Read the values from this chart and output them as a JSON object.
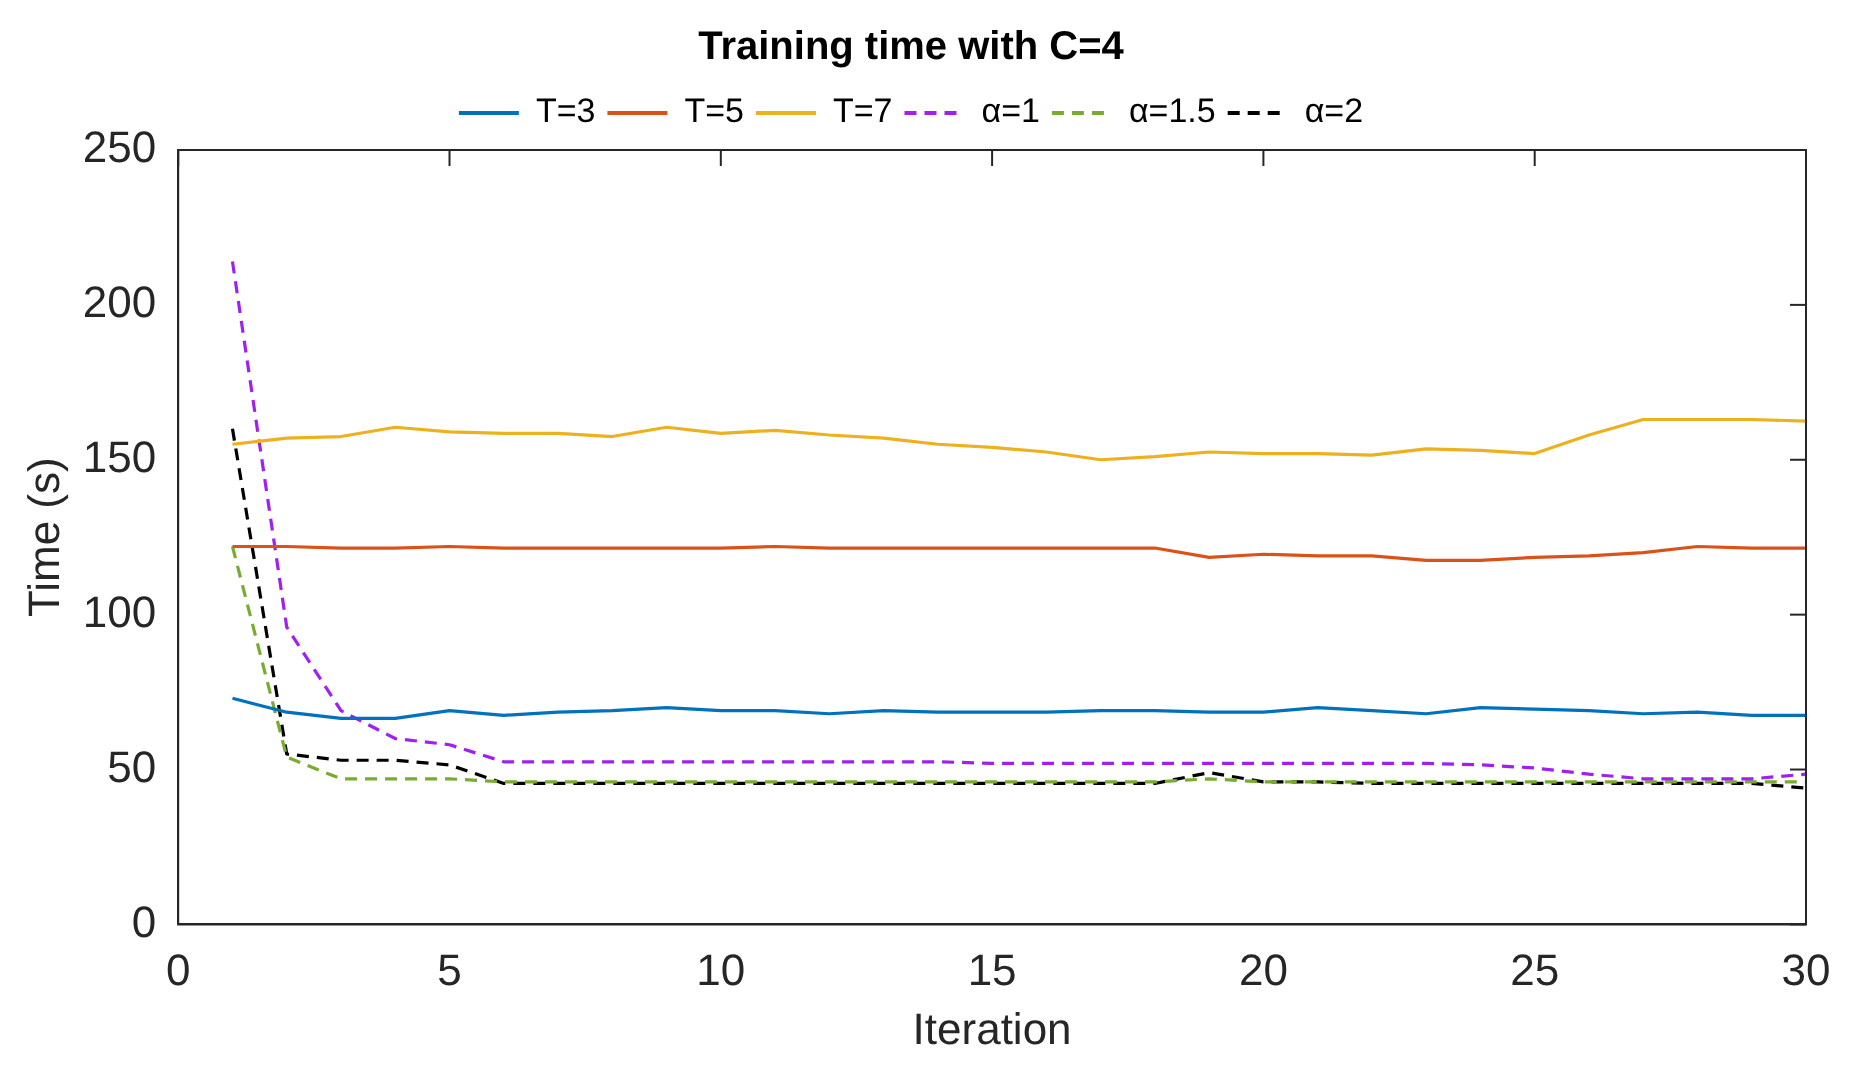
{
  "chart_data": {
    "type": "line",
    "title": "Training time with C=4",
    "xlabel": "Iteration",
    "ylabel": "Time (s)",
    "x": [
      1,
      2,
      3,
      4,
      5,
      6,
      7,
      8,
      9,
      10,
      11,
      12,
      13,
      14,
      15,
      16,
      17,
      18,
      19,
      20,
      21,
      22,
      23,
      24,
      25,
      26,
      27,
      28,
      29,
      30
    ],
    "xlim": [
      0,
      30
    ],
    "xticks": [
      0,
      5,
      10,
      15,
      20,
      25,
      30
    ],
    "ylim": [
      0,
      250
    ],
    "yticks": [
      0,
      50,
      100,
      150,
      200,
      250
    ],
    "grid": false,
    "legend": "top",
    "marker": "none",
    "series": [
      {
        "name": "T=3",
        "color": "#0072bd",
        "line_style": "solid",
        "values": [
          73,
          68.5,
          66.5,
          66.5,
          69,
          67.5,
          68.5,
          69,
          70,
          69,
          69,
          68,
          69,
          68.5,
          68.5,
          68.5,
          69,
          69,
          68.5,
          68.5,
          70,
          69,
          68,
          70,
          69.5,
          69,
          68,
          68.5,
          67.5,
          67.5
        ]
      },
      {
        "name": "T=5",
        "color": "#d95319",
        "line_style": "solid",
        "values": [
          122,
          122,
          121.5,
          121.5,
          122,
          121.5,
          121.5,
          121.5,
          121.5,
          121.5,
          122,
          121.5,
          121.5,
          121.5,
          121.5,
          121.5,
          121.5,
          121.5,
          118.5,
          119.5,
          119,
          119,
          117.5,
          117.5,
          118.5,
          119,
          120,
          122,
          121.5,
          121.5
        ]
      },
      {
        "name": "T=7",
        "color": "#edb120",
        "line_style": "solid",
        "values": [
          155,
          157,
          157.5,
          160.5,
          159,
          158.5,
          158.5,
          157.5,
          160.5,
          158.5,
          159.5,
          158,
          157,
          155,
          154,
          152.5,
          150,
          151,
          152.5,
          152,
          152,
          151.5,
          153.5,
          153,
          152,
          158,
          163,
          163,
          163,
          162.5
        ]
      },
      {
        "name": "α=1",
        "color": "#a020f0",
        "line_style": "dashed",
        "values": [
          214,
          96,
          69,
          60,
          58,
          52.5,
          52.5,
          52.5,
          52.5,
          52.5,
          52.5,
          52.5,
          52.5,
          52.5,
          52,
          52,
          52,
          52,
          52,
          52,
          52,
          52,
          52,
          51.5,
          50.5,
          48.5,
          47,
          47,
          47,
          48.5
        ]
      },
      {
        "name": "α=1.5",
        "color": "#77ac30",
        "line_style": "dashed",
        "values": [
          122,
          54,
          47,
          47,
          47,
          46,
          46,
          46,
          46,
          46,
          46,
          46,
          46,
          46,
          46,
          46,
          46,
          46,
          47,
          46,
          46,
          46,
          46,
          46,
          46,
          46,
          46,
          46,
          46,
          46
        ]
      },
      {
        "name": "α=2",
        "color": "#000000",
        "line_style": "dashed",
        "values": [
          160,
          55,
          53,
          53,
          51.5,
          45.5,
          45.5,
          45.5,
          45.5,
          45.5,
          45.5,
          45.5,
          45.5,
          45.5,
          45.5,
          45.5,
          45.5,
          45.5,
          49,
          46,
          46,
          45.5,
          45.5,
          45.5,
          45.5,
          45.5,
          45.5,
          45.5,
          45.5,
          44
        ]
      }
    ]
  }
}
